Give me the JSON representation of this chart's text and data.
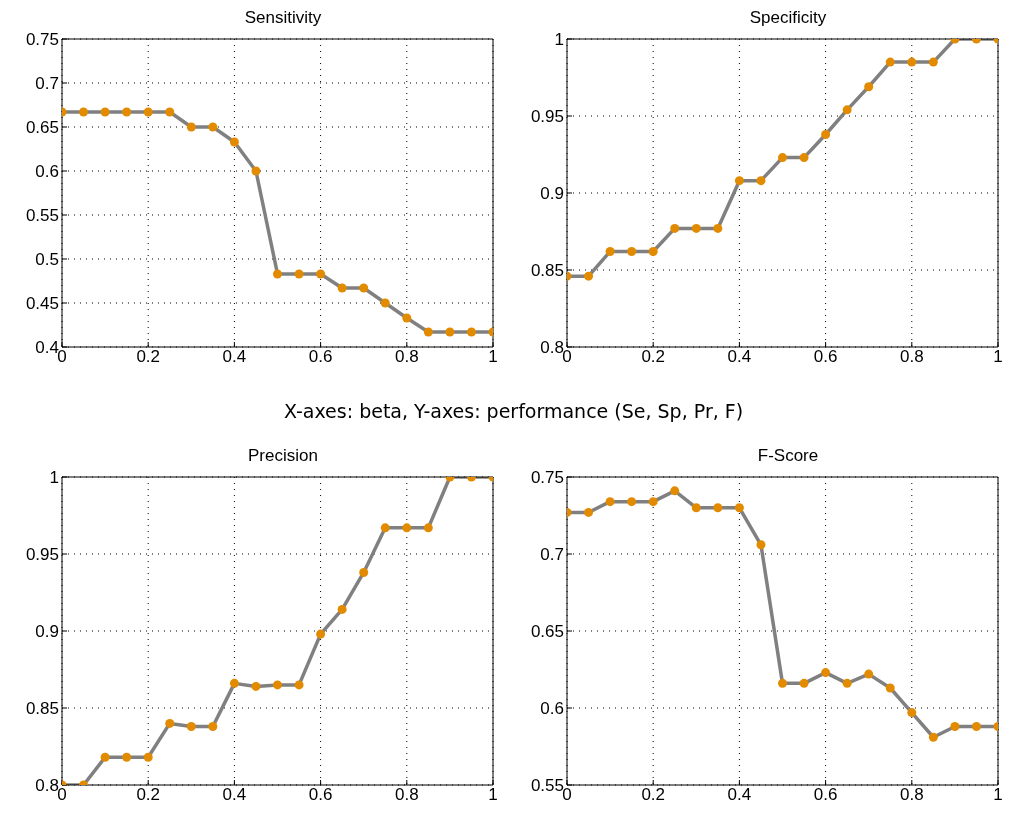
{
  "chart_data": [
    {
      "type": "line",
      "title": "Sensitivity",
      "annotations": [
        "X-axes: beta, Y-axes: performance (Se, Sp, Pr, F)"
      ],
      "x": [
        0,
        0.05,
        0.1,
        0.15,
        0.2,
        0.25,
        0.3,
        0.35,
        0.4,
        0.45,
        0.5,
        0.55,
        0.6,
        0.65,
        0.7,
        0.75,
        0.8,
        0.85,
        0.9,
        0.95,
        1
      ],
      "series": [
        {
          "color": "#808080",
          "colors": [
            "#e38b00",
            "#e38b00",
            "#e38b00",
            "#e38b00",
            "#e38b00",
            "#e38b00",
            "#e38b00",
            "#e38b00",
            "#e38b00",
            "#e38b00",
            "#e38b00",
            "#e38b00",
            "#e38b00",
            "#e38b00",
            "#e38b00",
            "#e38b00",
            "#e38b00",
            "#e38b00",
            "#e38b00",
            "#e38b00",
            "#e38b00"
          ],
          "values": [
            0.667,
            0.667,
            0.667,
            0.667,
            0.667,
            0.667,
            0.65,
            0.65,
            0.633,
            0.6,
            0.483,
            0.483,
            0.483,
            0.467,
            0.467,
            0.45,
            0.433,
            0.417,
            0.417,
            0.417,
            0.417
          ]
        }
      ],
      "xlim": [
        0,
        1
      ],
      "xticks": [
        0,
        0.2,
        0.4,
        0.6,
        0.8,
        1
      ],
      "ylim": [
        0.4,
        0.75
      ],
      "yticks": [
        0.4,
        0.45,
        0.5,
        0.55,
        0.6,
        0.65,
        0.7,
        0.75
      ],
      "grid": true,
      "marker": "circle",
      "line_style": "solid"
    },
    {
      "type": "line",
      "title": "Specificity",
      "x": [
        0,
        0.05,
        0.1,
        0.15,
        0.2,
        0.25,
        0.3,
        0.35,
        0.4,
        0.45,
        0.5,
        0.55,
        0.6,
        0.65,
        0.7,
        0.75,
        0.8,
        0.85,
        0.9,
        0.95,
        1
      ],
      "series": [
        {
          "color": "#808080",
          "colors": [
            "#e38b00",
            "#e38b00",
            "#e38b00",
            "#e38b00",
            "#e38b00",
            "#e38b00",
            "#e38b00",
            "#e38b00",
            "#e38b00",
            "#e38b00",
            "#e38b00",
            "#e38b00",
            "#e38b00",
            "#e38b00",
            "#e38b00",
            "#e38b00",
            "#e38b00",
            "#e38b00",
            "#e38b00",
            "#e38b00",
            "#e38b00"
          ],
          "values": [
            0.846,
            0.846,
            0.862,
            0.862,
            0.862,
            0.877,
            0.877,
            0.877,
            0.908,
            0.908,
            0.923,
            0.923,
            0.938,
            0.954,
            0.969,
            0.985,
            0.985,
            0.985,
            1,
            1,
            1
          ]
        }
      ],
      "xlim": [
        0,
        1
      ],
      "xticks": [
        0,
        0.2,
        0.4,
        0.6,
        0.8,
        1
      ],
      "ylim": [
        0.8,
        1
      ],
      "yticks": [
        0.8,
        0.85,
        0.9,
        0.95,
        1
      ],
      "grid": true,
      "marker": "circle",
      "line_style": "solid"
    },
    {
      "type": "line",
      "title": "Precision",
      "x": [
        0,
        0.05,
        0.1,
        0.15,
        0.2,
        0.25,
        0.3,
        0.35,
        0.4,
        0.45,
        0.5,
        0.55,
        0.6,
        0.65,
        0.7,
        0.75,
        0.8,
        0.85,
        0.9,
        0.95,
        1
      ],
      "series": [
        {
          "color": "#808080",
          "colors": [
            "#e38b00",
            "#e38b00",
            "#e38b00",
            "#e38b00",
            "#e38b00",
            "#e38b00",
            "#e38b00",
            "#e38b00",
            "#e38b00",
            "#e38b00",
            "#e38b00",
            "#e38b00",
            "#e38b00",
            "#e38b00",
            "#e38b00",
            "#e38b00",
            "#e38b00",
            "#e38b00",
            "#e38b00",
            "#e38b00",
            "#e38b00"
          ],
          "values": [
            0.8,
            0.8,
            0.818,
            0.818,
            0.818,
            0.84,
            0.838,
            0.838,
            0.866,
            0.864,
            0.865,
            0.865,
            0.898,
            0.914,
            0.938,
            0.967,
            0.967,
            0.967,
            1,
            1,
            1
          ]
        }
      ],
      "xlim": [
        0,
        1
      ],
      "xticks": [
        0,
        0.2,
        0.4,
        0.6,
        0.8,
        1
      ],
      "ylim": [
        0.8,
        1
      ],
      "yticks": [
        0.8,
        0.85,
        0.9,
        0.95,
        1
      ],
      "grid": true,
      "marker": "circle",
      "line_style": "solid"
    },
    {
      "type": "line",
      "title": "F-Score",
      "x": [
        0,
        0.05,
        0.1,
        0.15,
        0.2,
        0.25,
        0.3,
        0.35,
        0.4,
        0.45,
        0.5,
        0.55,
        0.6,
        0.65,
        0.7,
        0.75,
        0.8,
        0.85,
        0.9,
        0.95,
        1
      ],
      "series": [
        {
          "color": "#808080",
          "colors": [
            "#e38b00",
            "#e38b00",
            "#e38b00",
            "#e38b00",
            "#e38b00",
            "#e38b00",
            "#e38b00",
            "#e38b00",
            "#e38b00",
            "#e38b00",
            "#e38b00",
            "#e38b00",
            "#e38b00",
            "#e38b00",
            "#e38b00",
            "#e38b00",
            "#e38b00",
            "#e38b00",
            "#e38b00",
            "#e38b00",
            "#e38b00"
          ],
          "values": [
            0.727,
            0.727,
            0.734,
            0.734,
            0.734,
            0.741,
            0.73,
            0.73,
            0.73,
            0.706,
            0.616,
            0.616,
            0.623,
            0.616,
            0.622,
            0.613,
            0.597,
            0.581,
            0.588,
            0.588,
            0.588
          ]
        }
      ],
      "xlim": [
        0,
        1
      ],
      "xticks": [
        0,
        0.2,
        0.4,
        0.6,
        0.8,
        1
      ],
      "ylim": [
        0.55,
        0.75
      ],
      "yticks": [
        0.55,
        0.6,
        0.65,
        0.7,
        0.75
      ],
      "grid": true,
      "marker": "circle",
      "line_style": "solid"
    }
  ]
}
